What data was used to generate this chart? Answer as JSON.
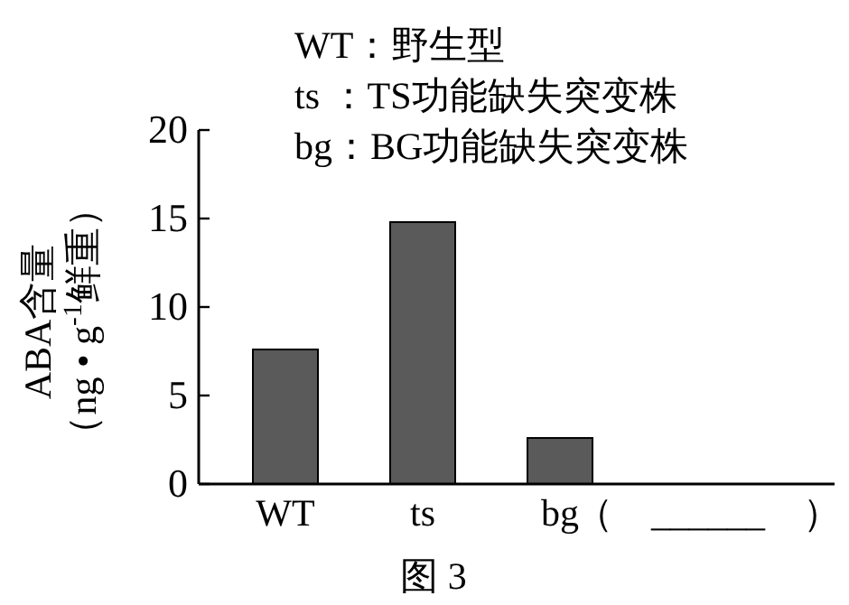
{
  "chart_data": {
    "type": "bar",
    "categories": [
      "WT",
      "ts",
      "bg",
      "（　______　）"
    ],
    "values": [
      7.6,
      14.8,
      2.6,
      null
    ],
    "color": "#5a5a5a",
    "ylabel": "ABA含量（ng • g$^{-1}$鲜重）",
    "ylim": [
      0,
      20
    ],
    "yticks": [
      0,
      5,
      10,
      15,
      20
    ],
    "annotations": [
      "WT：野生型",
      "ts ：TS功能缺失突变株",
      "bg：BG功能缺失突变株",
      "图 3"
    ]
  }
}
